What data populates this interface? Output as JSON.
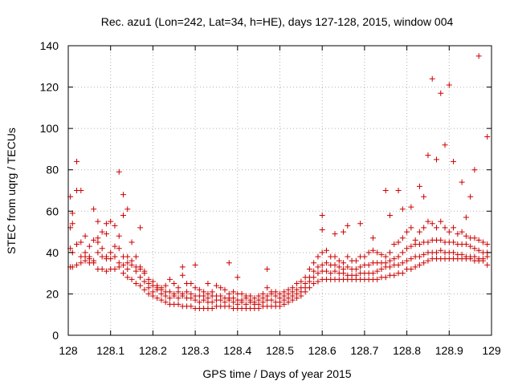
{
  "chart_data": {
    "type": "scatter",
    "title": "Rec. azu1 (Lon=242, Lat=34, h=HE), days 127-128, 2015, window 004",
    "xlabel": "GPS time / Days of year 2015",
    "ylabel": "STEC from uqrg / TECUs",
    "xlim": [
      128,
      129
    ],
    "ylim": [
      0,
      140
    ],
    "xticks": [
      128,
      128.1,
      128.2,
      128.3,
      128.4,
      128.5,
      128.6,
      128.7,
      128.8,
      128.9,
      129
    ],
    "xtick_labels": [
      "128",
      "128.1",
      "128.2",
      "128.3",
      "128.4",
      "128.5",
      "128.6",
      "128.7",
      "128.8",
      "128.9",
      "129"
    ],
    "yticks": [
      0,
      20,
      40,
      60,
      80,
      100,
      120,
      140
    ],
    "ytick_labels": [
      "0",
      "20",
      "40",
      "60",
      "80",
      "100",
      "120",
      "140"
    ],
    "grid": true,
    "marker": "+",
    "color": "#cc0000",
    "series": [
      {
        "x": [
          128.005,
          128.01,
          128.02,
          128.03,
          128.04,
          128.05,
          128.06,
          128.07,
          128.08,
          128.09,
          128.1,
          128.11,
          128.12,
          128.13,
          128.14,
          128.15,
          128.16,
          128.17,
          128.18,
          128.19,
          128.2,
          128.21,
          128.22,
          128.23,
          128.24,
          128.25,
          128.26,
          128.27,
          128.28,
          128.29,
          128.3,
          128.31,
          128.32,
          128.33,
          128.34,
          128.35,
          128.36,
          128.37,
          128.38,
          128.39,
          128.4,
          128.41,
          128.42,
          128.43,
          128.44,
          128.45,
          128.46,
          128.47,
          128.48,
          128.49,
          128.5,
          128.51,
          128.52,
          128.53,
          128.54,
          128.55,
          128.56,
          128.57,
          128.58,
          128.59,
          128.6,
          128.61,
          128.62,
          128.63,
          128.64,
          128.65,
          128.66,
          128.67,
          128.68,
          128.69,
          128.7,
          128.71,
          128.72,
          128.73,
          128.74,
          128.75,
          128.76,
          128.77,
          128.78,
          128.79,
          128.8,
          128.81,
          128.82,
          128.83,
          128.84,
          128.85,
          128.86,
          128.87,
          128.88,
          128.89,
          128.9,
          128.91,
          128.92,
          128.93,
          128.94,
          128.95,
          128.96,
          128.97,
          128.98,
          128.99
        ],
        "y": [
          33,
          33,
          34,
          35,
          36,
          37,
          35,
          32,
          32,
          31,
          32,
          32,
          33,
          30,
          28,
          27,
          25,
          24,
          22,
          20,
          19,
          18,
          17,
          16,
          15,
          15,
          15,
          14,
          14,
          14,
          13,
          13,
          13,
          13,
          13,
          14,
          14,
          14,
          14,
          13,
          13,
          13,
          13,
          13,
          13,
          13,
          14,
          14,
          14,
          14,
          14,
          15,
          16,
          17,
          18,
          19,
          21,
          23,
          25,
          26,
          27,
          27,
          27,
          27,
          27,
          27,
          27,
          27,
          27,
          27,
          27,
          27,
          27,
          27,
          28,
          28,
          29,
          29,
          30,
          30,
          32,
          32,
          33,
          34,
          35,
          36,
          37,
          37,
          37,
          37,
          37,
          37,
          37,
          37,
          37,
          37,
          36,
          36,
          36,
          34
        ]
      },
      {
        "x": [
          128.005,
          128.01,
          128.02,
          128.03,
          128.04,
          128.05,
          128.06,
          128.07,
          128.08,
          128.09,
          128.1,
          128.11,
          128.12,
          128.13,
          128.14,
          128.15,
          128.16,
          128.17,
          128.18,
          128.19,
          128.2,
          128.21,
          128.22,
          128.23,
          128.24,
          128.25,
          128.26,
          128.27,
          128.28,
          128.29,
          128.3,
          128.31,
          128.32,
          128.33,
          128.34,
          128.35,
          128.36,
          128.37,
          128.38,
          128.39,
          128.4,
          128.41,
          128.42,
          128.43,
          128.44,
          128.45,
          128.46,
          128.47,
          128.48,
          128.49,
          128.5,
          128.51,
          128.52,
          128.53,
          128.54,
          128.55,
          128.56,
          128.57,
          128.58,
          128.59,
          128.6,
          128.61,
          128.62,
          128.63,
          128.64,
          128.65,
          128.66,
          128.67,
          128.68,
          128.69,
          128.7,
          128.71,
          128.72,
          128.73,
          128.74,
          128.75,
          128.76,
          128.77,
          128.78,
          128.79,
          128.8,
          128.81,
          128.82,
          128.83,
          128.84,
          128.85,
          128.86,
          128.87,
          128.88,
          128.89,
          128.9,
          128.91,
          128.92,
          128.93,
          128.94,
          128.95,
          128.96,
          128.97,
          128.98,
          128.99
        ],
        "y": [
          42,
          40,
          44,
          38,
          40,
          35,
          36,
          45,
          38,
          37,
          37,
          38,
          35,
          34,
          32,
          34,
          31,
          28,
          26,
          23,
          21,
          22,
          20,
          19,
          18,
          19,
          18,
          19,
          18,
          18,
          17,
          16,
          17,
          16,
          16,
          17,
          17,
          16,
          17,
          16,
          15,
          16,
          15,
          16,
          15,
          15,
          16,
          17,
          17,
          16,
          16,
          17,
          18,
          19,
          20,
          21,
          23,
          26,
          28,
          30,
          31,
          31,
          30,
          31,
          30,
          30,
          29,
          29,
          29,
          30,
          30,
          30,
          30,
          31,
          32,
          33,
          33,
          34,
          34,
          35,
          36,
          37,
          38,
          38,
          39,
          40,
          40,
          40,
          41,
          40,
          40,
          40,
          39,
          39,
          38,
          38,
          38,
          37,
          37,
          38
        ]
      },
      {
        "x": [
          128.005,
          128.01,
          128.02,
          128.03,
          128.04,
          128.05,
          128.06,
          128.07,
          128.08,
          128.09,
          128.1,
          128.11,
          128.12,
          128.13,
          128.14,
          128.15,
          128.16,
          128.17,
          128.18,
          128.19,
          128.2,
          128.21,
          128.22,
          128.23,
          128.24,
          128.25,
          128.26,
          128.27,
          128.28,
          128.29,
          128.3,
          128.31,
          128.32,
          128.33,
          128.34,
          128.35,
          128.36,
          128.37,
          128.38,
          128.39,
          128.4,
          128.41,
          128.42,
          128.43,
          128.44,
          128.45,
          128.46,
          128.47,
          128.48,
          128.49,
          128.5,
          128.51,
          128.52,
          128.53,
          128.54,
          128.55,
          128.56,
          128.57,
          128.58,
          128.59,
          128.6,
          128.61,
          128.62,
          128.63,
          128.64,
          128.65,
          128.66,
          128.67,
          128.68,
          128.69,
          128.7,
          128.71,
          128.72,
          128.73,
          128.74,
          128.75,
          128.76,
          128.77,
          128.78,
          128.79,
          128.8,
          128.81,
          128.82,
          128.83,
          128.84,
          128.85,
          128.86,
          128.87,
          128.88,
          128.89,
          128.9,
          128.91,
          128.92,
          128.93,
          128.94,
          128.95,
          128.96,
          128.97,
          128.98,
          128.99
        ],
        "y": [
          52,
          59,
          44,
          45,
          48,
          38,
          46,
          40,
          42,
          38,
          40,
          43,
          42,
          38,
          35,
          36,
          33,
          32,
          30,
          27,
          24,
          23,
          22,
          21,
          21,
          20,
          21,
          20,
          21,
          20,
          19,
          19,
          19,
          18,
          19,
          19,
          19,
          18,
          18,
          18,
          17,
          17,
          18,
          17,
          16,
          17,
          18,
          19,
          20,
          19,
          18,
          19,
          20,
          21,
          22,
          23,
          25,
          28,
          31,
          33,
          34,
          35,
          34,
          34,
          33,
          32,
          33,
          32,
          32,
          33,
          34,
          34,
          35,
          35,
          35,
          35,
          36,
          37,
          38,
          40,
          42,
          43,
          44,
          44,
          45,
          45,
          46,
          46,
          46,
          45,
          45,
          45,
          44,
          44,
          44,
          43,
          42,
          41,
          40,
          40
        ]
      },
      {
        "x": [
          128.005,
          128.01,
          128.02,
          128.03,
          128.04,
          128.05,
          128.06,
          128.07,
          128.08,
          128.09,
          128.1,
          128.11,
          128.12,
          128.13,
          128.14,
          128.15,
          128.16,
          128.17,
          128.18,
          128.19,
          128.2,
          128.21,
          128.22,
          128.23,
          128.24,
          128.25,
          128.26,
          128.27,
          128.28,
          128.29,
          128.3,
          128.31,
          128.32,
          128.33,
          128.34,
          128.35,
          128.36,
          128.37,
          128.38,
          128.39,
          128.4,
          128.41,
          128.42,
          128.43,
          128.44,
          128.45,
          128.46,
          128.47,
          128.48,
          128.49,
          128.5,
          128.51,
          128.52,
          128.53,
          128.54,
          128.55,
          128.56,
          128.57,
          128.58,
          128.59,
          128.6,
          128.61,
          128.62,
          128.63,
          128.64,
          128.65,
          128.66,
          128.67,
          128.68,
          128.69,
          128.7,
          128.71,
          128.72,
          128.73,
          128.74,
          128.75,
          128.76,
          128.77,
          128.78,
          128.79,
          128.8,
          128.81,
          128.82,
          128.83,
          128.84,
          128.85,
          128.86,
          128.87,
          128.88,
          128.89,
          128.9,
          128.91,
          128.92,
          128.93,
          128.94,
          128.95,
          128.96,
          128.97,
          128.98,
          128.99
        ],
        "y": [
          67,
          54,
          70,
          70,
          38,
          43,
          61,
          47,
          50,
          49,
          55,
          53,
          48,
          58,
          38,
          45,
          38,
          33,
          31,
          25,
          26,
          24,
          23,
          24,
          27,
          25,
          23,
          29,
          25,
          25,
          23,
          22,
          21,
          20,
          21,
          24,
          23,
          22,
          20,
          21,
          20,
          20,
          19,
          19,
          18,
          19,
          20,
          23,
          21,
          21,
          20,
          21,
          22,
          23,
          25,
          26,
          28,
          32,
          35,
          38,
          40,
          41,
          38,
          38,
          36,
          35,
          38,
          36,
          36,
          38,
          38,
          40,
          41,
          40,
          39,
          38,
          40,
          44,
          45,
          47,
          50,
          52,
          46,
          50,
          52,
          55,
          54,
          52,
          55,
          52,
          50,
          52,
          49,
          50,
          48,
          47,
          47,
          46,
          45,
          44
        ]
      },
      {
        "x": [
          128.02,
          128.12,
          128.13,
          128.14,
          128.3,
          128.38,
          128.4,
          128.47,
          128.6,
          128.65,
          128.75,
          128.76,
          128.78,
          128.85,
          128.86,
          128.87,
          128.88,
          128.89,
          128.9,
          128.91,
          128.93,
          128.95,
          128.96,
          128.97,
          128.99,
          128.6,
          128.63,
          128.66,
          128.69,
          128.81,
          128.84,
          128.94,
          128.83,
          128.79,
          128.72,
          128.33,
          128.27,
          128.17,
          128.09,
          128.07
        ],
        "y": [
          84,
          79,
          68,
          61,
          34,
          35,
          28,
          32,
          58,
          50,
          70,
          58,
          70,
          87,
          124,
          85,
          117,
          92,
          121,
          84,
          74,
          67,
          80,
          135,
          96,
          51,
          49,
          53,
          54,
          62,
          67,
          57,
          72,
          61,
          47,
          25,
          33,
          52,
          54,
          55
        ]
      }
    ]
  }
}
